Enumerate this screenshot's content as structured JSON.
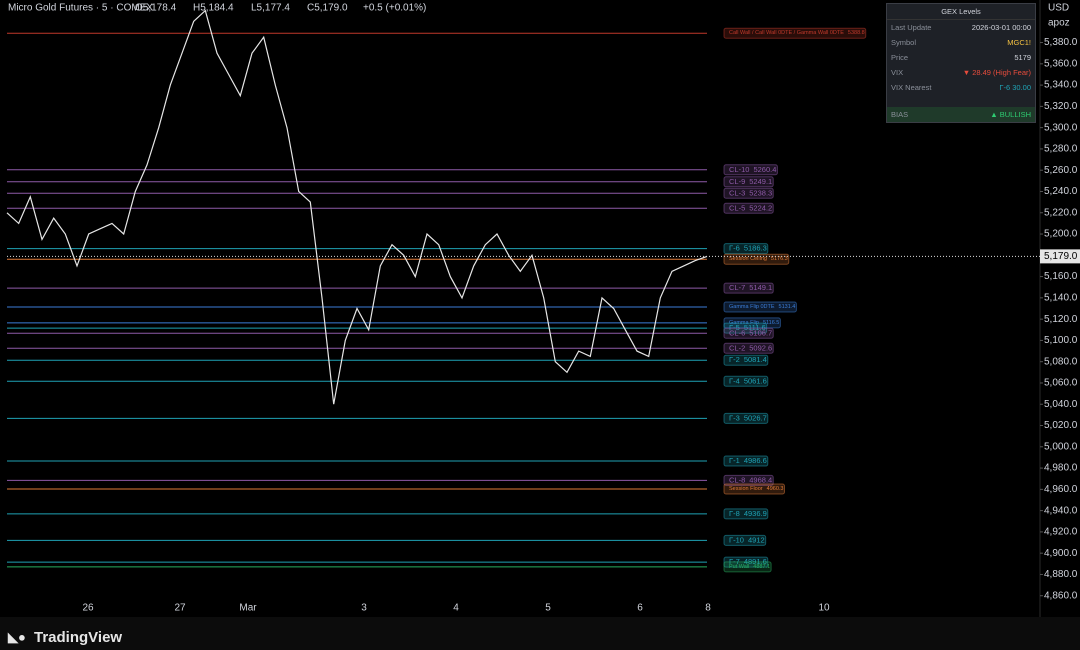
{
  "chart_data": {
    "type": "line",
    "title": "Micro Gold Futures · 5 · COMEX",
    "ohlc": [
      "O5,178.4",
      "H5,184.4",
      "L5,177.4",
      "C5,179.0",
      "+0.5 (+0.01%)"
    ],
    "currency": "USD",
    "user": "apoz",
    "brand": "TradingView",
    "x_labels": [
      "26",
      "27",
      "Mar",
      "3",
      "4",
      "5",
      "6",
      "8",
      "10"
    ],
    "ylim": [
      4840,
      5420
    ],
    "yticks": [
      {
        "value": 4860,
        "label": "4,860.0"
      },
      {
        "value": 4880,
        "label": "4,880.0"
      },
      {
        "value": 4900,
        "label": "4,900.0"
      },
      {
        "value": 4920,
        "label": "4,920.0"
      },
      {
        "value": 4940,
        "label": "4,940.0"
      },
      {
        "value": 4960,
        "label": "4,960.0"
      },
      {
        "value": 4980,
        "label": "4,980.0"
      },
      {
        "value": 5000,
        "label": "5,000.0"
      },
      {
        "value": 5020,
        "label": "5,020.0"
      },
      {
        "value": 5040,
        "label": "5,040.0"
      },
      {
        "value": 5060,
        "label": "5,060.0"
      },
      {
        "value": 5080,
        "label": "5,080.0"
      },
      {
        "value": 5100,
        "label": "5,100.0"
      },
      {
        "value": 5120,
        "label": "5,120.0"
      },
      {
        "value": 5140,
        "label": "5,140.0"
      },
      {
        "value": 5160,
        "label": "5,160.0"
      },
      {
        "value": 5180,
        "label": "5,180.0"
      },
      {
        "value": 5200,
        "label": "5,200.0"
      },
      {
        "value": 5220,
        "label": "5,220.0"
      },
      {
        "value": 5240,
        "label": "5,240.0"
      },
      {
        "value": 5260,
        "label": "5,260.0"
      },
      {
        "value": 5280,
        "label": "5,280.0"
      },
      {
        "value": 5300,
        "label": "5,300.0"
      },
      {
        "value": 5320,
        "label": "5,320.0"
      },
      {
        "value": 5340,
        "label": "5,340.0"
      },
      {
        "value": 5360,
        "label": "5,360.0"
      },
      {
        "value": 5380,
        "label": "5,380.0"
      }
    ],
    "last_price": {
      "value": 5179.0,
      "label": "5,179.0"
    },
    "series": [
      {
        "name": "MGC1!",
        "color": "#e6e6e6",
        "values": [
          5220,
          5210,
          5235,
          5195,
          5215,
          5200,
          5170,
          5200,
          5205,
          5210,
          5200,
          5240,
          5265,
          5300,
          5340,
          5370,
          5400,
          5410,
          5370,
          5350,
          5330,
          5370,
          5385,
          5340,
          5300,
          5240,
          5230,
          5140,
          5040,
          5100,
          5130,
          5110,
          5170,
          5190,
          5180,
          5160,
          5200,
          5190,
          5160,
          5140,
          5170,
          5190,
          5200,
          5180,
          5165,
          5180,
          5140,
          5080,
          5070,
          5090,
          5085,
          5140,
          5130,
          5110,
          5090,
          5085,
          5140,
          5165,
          5170,
          5175,
          5179
        ]
      }
    ],
    "levels": [
      {
        "name": "Call Wall / Call Wall 0DTE / Gamma Wall 0DTE",
        "value": 5388.8,
        "color": "#c0392b"
      },
      {
        "name": "CL-10",
        "value": 5260.4,
        "color": "#8e5aa8"
      },
      {
        "name": "CL-9",
        "value": 5249.1,
        "color": "#8e5aa8"
      },
      {
        "name": "CL-3",
        "value": 5238.3,
        "color": "#8e5aa8"
      },
      {
        "name": "CL-5",
        "value": 5224.2,
        "color": "#8e5aa8"
      },
      {
        "name": "Γ-6",
        "value": 5186.3,
        "color": "#1fa2b5"
      },
      {
        "name": "Session Ceiling",
        "value": 5176.3,
        "color": "#e07b39"
      },
      {
        "name": "CL-7",
        "value": 5149.1,
        "color": "#8e5aa8"
      },
      {
        "name": "Gamma Flip 0DTE",
        "value": 5131.4,
        "color": "#3b7dd8"
      },
      {
        "name": "Gamma Flip",
        "value": 5116.5,
        "color": "#3b7dd8"
      },
      {
        "name": "Γ-5",
        "value": 5111.6,
        "color": "#1fa2b5"
      },
      {
        "name": "CL-6",
        "value": 5106.7,
        "color": "#8e5aa8"
      },
      {
        "name": "CL-2",
        "value": 5092.6,
        "color": "#8e5aa8"
      },
      {
        "name": "Γ-2",
        "value": 5081.4,
        "color": "#1fa2b5"
      },
      {
        "name": "Γ-4",
        "value": 5061.6,
        "color": "#1fa2b5"
      },
      {
        "name": "Γ-3",
        "value": 5026.7,
        "color": "#1fa2b5"
      },
      {
        "name": "Γ-1",
        "value": 4986.6,
        "color": "#1fa2b5"
      },
      {
        "name": "CL-8",
        "value": 4968.4,
        "color": "#8e5aa8"
      },
      {
        "name": "Session Floor",
        "value": 4960.3,
        "color": "#e07b39"
      },
      {
        "name": "Γ-8",
        "value": 4936.9,
        "color": "#1fa2b5"
      },
      {
        "name": "Γ-10",
        "value": 4912,
        "color": "#1fa2b5"
      },
      {
        "name": "Γ-7",
        "value": 4891.6,
        "color": "#1fa2b5"
      },
      {
        "name": "Put Wall",
        "value": 4887.1,
        "color": "#27ae60"
      }
    ]
  },
  "gex_panel": {
    "title": "GEX Levels",
    "rows": [
      [
        "Last Update",
        "2026-03-01  00:00"
      ],
      [
        "Symbol",
        "MGC1!"
      ],
      [
        "Price",
        "5179"
      ],
      [
        "VIX",
        "▼ 28.49  (High Fear)"
      ],
      [
        "VIX Nearest",
        "Γ-6 30.00"
      ],
      [
        "BIAS",
        "▲ BULLISH"
      ]
    ]
  }
}
